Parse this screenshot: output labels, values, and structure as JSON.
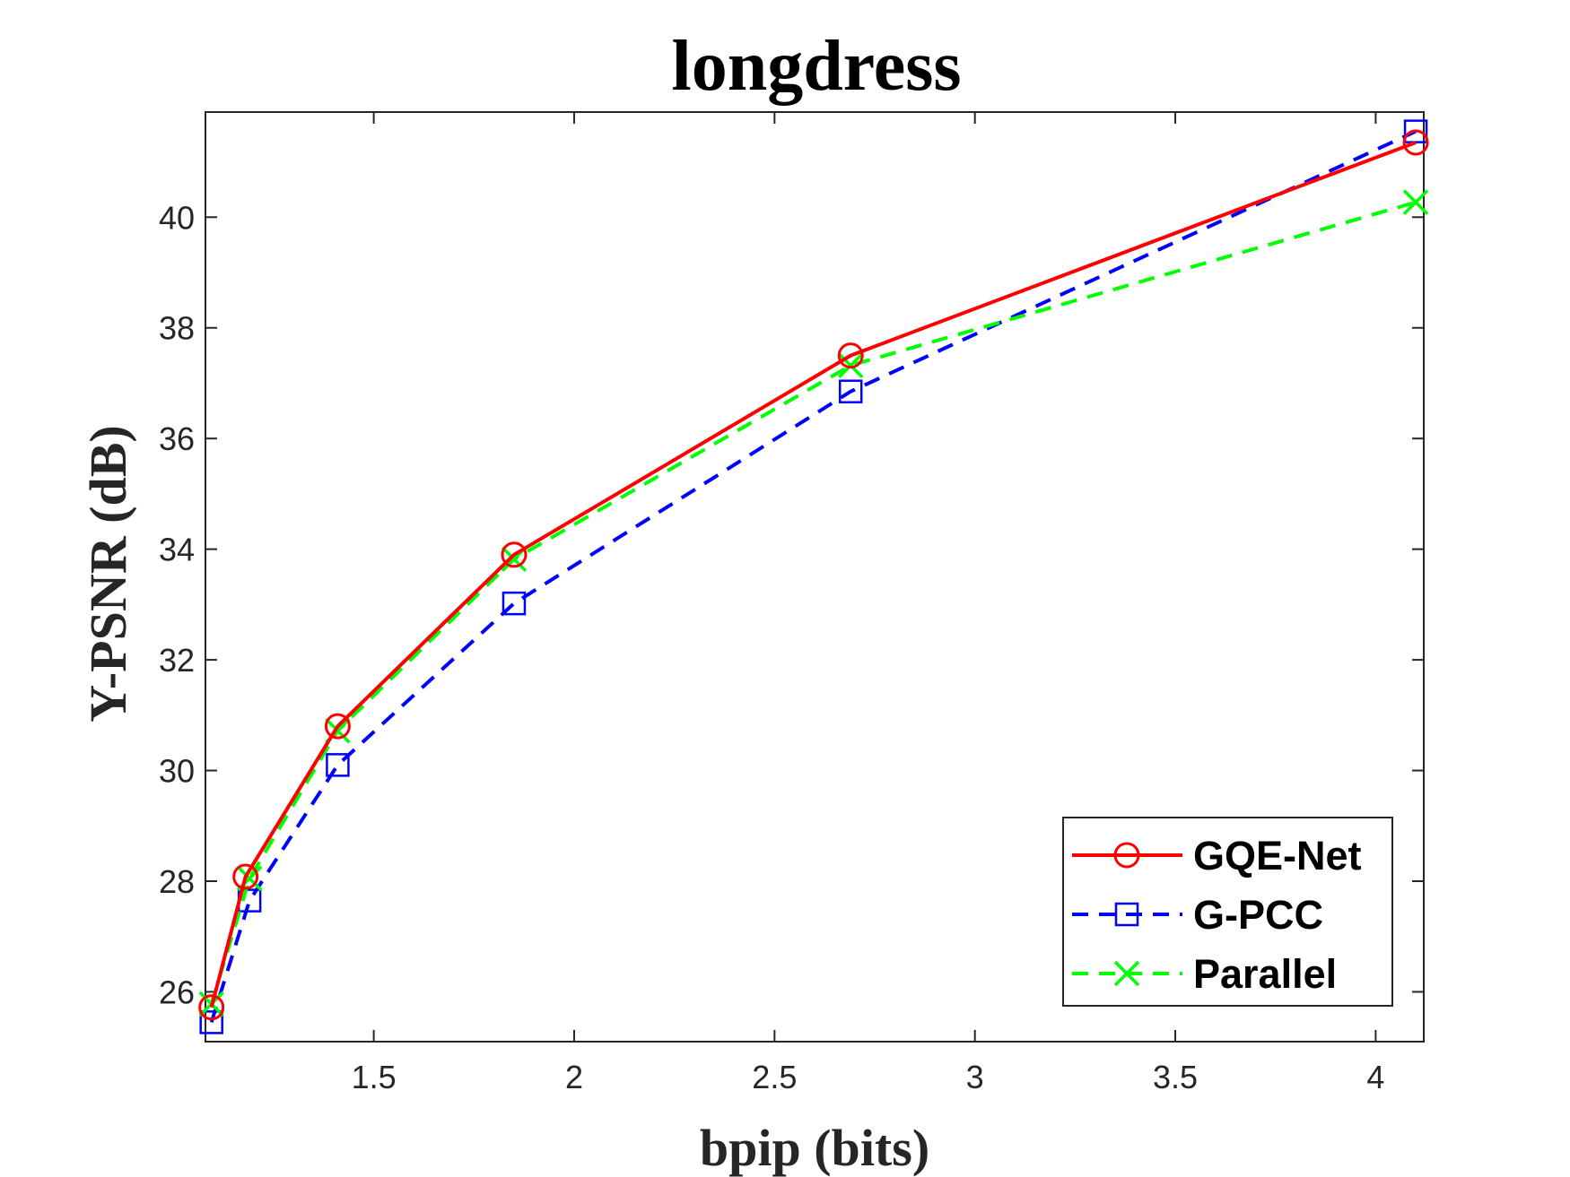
{
  "chart_data": {
    "type": "line",
    "title": "longdress",
    "xlabel": "bpip (bits)",
    "ylabel": "Y-PSNR (dB)",
    "xlim": [
      1.08,
      4.12
    ],
    "ylim": [
      25.1,
      41.9
    ],
    "xticks": [
      1.5,
      2,
      2.5,
      3,
      3.5,
      4
    ],
    "xtick_labels": [
      "1.5",
      "2",
      "2.5",
      "3",
      "3.5",
      "4"
    ],
    "yticks": [
      26,
      28,
      30,
      32,
      34,
      36,
      38,
      40
    ],
    "ytick_labels": [
      "26",
      "28",
      "30",
      "32",
      "34",
      "36",
      "38",
      "40"
    ],
    "grid": false,
    "legend_position": "bottom-right",
    "series": [
      {
        "name": "GQE-Net",
        "color": "#ff0000",
        "line_style": "solid",
        "marker": "circle",
        "x": [
          1.095,
          1.18,
          1.41,
          1.85,
          2.69,
          4.1
        ],
        "y": [
          25.72,
          28.08,
          30.8,
          33.9,
          37.5,
          41.35
        ]
      },
      {
        "name": "G-PCC",
        "color": "#0000ff",
        "line_style": "dashed",
        "marker": "square",
        "x": [
          1.095,
          1.19,
          1.41,
          1.85,
          2.69,
          4.1
        ],
        "y": [
          25.45,
          27.65,
          30.1,
          33.02,
          36.85,
          41.55
        ]
      },
      {
        "name": "Parallel",
        "color": "#00ff00",
        "line_style": "dashed",
        "marker": "x",
        "x": [
          1.095,
          1.19,
          1.41,
          1.85,
          2.69,
          4.1
        ],
        "y": [
          25.78,
          28.05,
          30.72,
          33.82,
          37.32,
          40.27
        ]
      }
    ]
  }
}
